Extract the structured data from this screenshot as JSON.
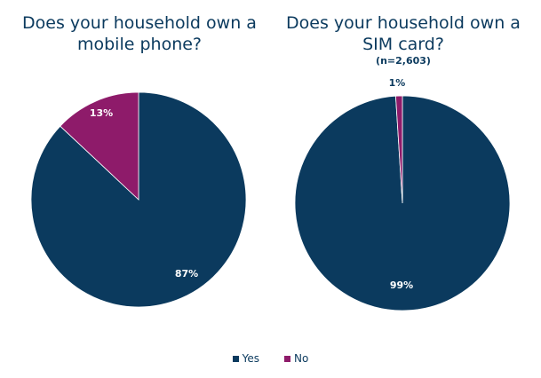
{
  "chart_data": [
    {
      "type": "pie",
      "title": "Does your household own a mobile phone?",
      "subtitle": "",
      "categories": [
        "Yes",
        "No"
      ],
      "values": [
        87,
        13
      ],
      "labels": [
        "87%",
        "13%"
      ],
      "colors": [
        "#0b3a5e",
        "#8e1b6a"
      ]
    },
    {
      "type": "pie",
      "title": "Does your household own a SIM card?",
      "subtitle": "(n=2,603)",
      "categories": [
        "Yes",
        "No"
      ],
      "values": [
        99,
        1
      ],
      "labels": [
        "99%",
        "1%"
      ],
      "colors": [
        "#0b3a5e",
        "#8e1b6a"
      ]
    }
  ],
  "legend": {
    "items": [
      {
        "label": "Yes",
        "color": "#0b3a5e"
      },
      {
        "label": "No",
        "color": "#8e1b6a"
      }
    ],
    "placement": "bottom"
  }
}
